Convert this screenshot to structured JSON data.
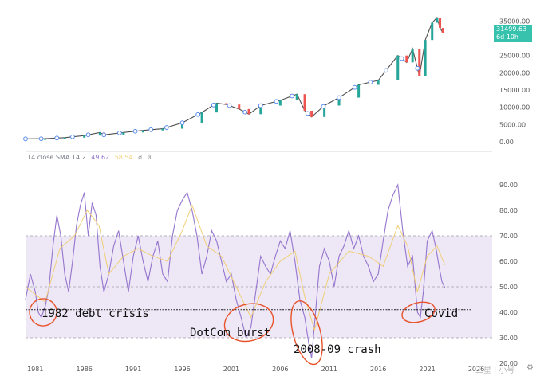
{
  "chart_data": [
    {
      "type": "line",
      "title": "",
      "xlabel": "",
      "ylabel": "",
      "ylim": [
        0,
        36000
      ],
      "ytick_labels": [
        "35000.00",
        "30000.00",
        "25000.00",
        "20000.00",
        "15000.00",
        "10000.00",
        "5000.00",
        "0.00"
      ],
      "y_ticks": [
        35000,
        30000,
        25000,
        20000,
        15000,
        10000,
        5000,
        0
      ],
      "last_value_label": "31499.63",
      "last_value_sub": "6d 10h",
      "last_value": 31499.63,
      "x": [
        1980.0,
        1982.0,
        1984.0,
        1986.0,
        1987.6,
        1988.0,
        1990.0,
        1992.0,
        1994.0,
        1996.0,
        1998.0,
        1999.5,
        2000.5,
        2001.8,
        2002.8,
        2004.0,
        2006.0,
        2007.7,
        2008.5,
        2009.2,
        2010.5,
        2012.0,
        2014.0,
        2016.0,
        2018.0,
        2018.9,
        2019.5,
        2020.2,
        2020.8,
        2021.5,
        2022.0,
        2022.3,
        2022.6
      ],
      "values": [
        850,
        900,
        1200,
        1800,
        2700,
        2000,
        2700,
        3300,
        3800,
        5500,
        8500,
        11200,
        10800,
        9500,
        8000,
        10500,
        12000,
        13800,
        9000,
        7200,
        10500,
        12800,
        16500,
        17800,
        25000,
        23000,
        27000,
        19000,
        29500,
        34500,
        36000,
        33000,
        31500
      ],
      "x_range": [
        1980,
        2026
      ]
    },
    {
      "type": "line",
      "title": "",
      "legend_label": "14 close SMA 14 2",
      "legend_values": [
        "49.62",
        "58.54"
      ],
      "legend_icons": [
        "ø",
        "ø"
      ],
      "ylim": [
        20,
        95
      ],
      "ytick_labels": [
        "90.00",
        "80.00",
        "70.00",
        "60.00",
        "50.00",
        "40.00",
        "30.00",
        "20.00"
      ],
      "y_ticks": [
        90,
        80,
        70,
        60,
        50,
        40,
        30,
        20
      ],
      "bands": [
        70,
        50,
        30
      ],
      "threshold_line": 41,
      "x_tick_labels": [
        "1981",
        "1986",
        "1991",
        "1996",
        "2001",
        "2006",
        "2011",
        "2016",
        "2021",
        "2026"
      ],
      "x_ticks": [
        1981,
        1986,
        1991,
        1996,
        2001,
        2006,
        2011,
        2016,
        2021,
        2026
      ],
      "x_range": [
        1980,
        2026
      ],
      "series": [
        {
          "x": [
            1980.0,
            1980.5,
            1981.0,
            1981.3,
            1981.6,
            1982.0,
            1982.4,
            1982.8,
            1983.2,
            1983.6,
            1984.0,
            1984.4,
            1984.8,
            1985.2,
            1985.6,
            1986.0,
            1986.4,
            1986.8,
            1987.2,
            1987.6,
            1988.0,
            1988.5,
            1989.0,
            1989.5,
            1990.0,
            1990.5,
            1991.0,
            1991.5,
            1992.0,
            1992.5,
            1993.0,
            1993.5,
            1994.0,
            1994.5,
            1995.0,
            1995.5,
            1996.0,
            1996.5,
            1997.0,
            1997.5,
            1998.0,
            1998.5,
            1999.0,
            1999.5,
            2000.0,
            2000.5,
            2001.0,
            2001.5,
            2002.0,
            2002.5,
            2003.0,
            2003.5,
            2004.0,
            2004.5,
            2005.0,
            2005.5,
            2006.0,
            2006.5,
            2007.0,
            2007.5,
            2008.0,
            2008.5,
            2008.9,
            2009.2,
            2009.6,
            2010.0,
            2010.5,
            2011.0,
            2011.5,
            2012.0,
            2012.5,
            2013.0,
            2013.5,
            2014.0,
            2014.5,
            2015.0,
            2015.5,
            2016.0,
            2016.5,
            2017.0,
            2017.5,
            2018.0,
            2018.5,
            2019.0,
            2019.5,
            2020.0,
            2020.3,
            2020.6,
            2021.0,
            2021.5,
            2021.9,
            2022.2,
            2022.5,
            2022.8
          ],
          "values": [
            45,
            55,
            48,
            40,
            38,
            42,
            50,
            66,
            78,
            70,
            55,
            48,
            60,
            74,
            82,
            87,
            70,
            83,
            78,
            58,
            48,
            55,
            66,
            72,
            60,
            48,
            62,
            70,
            60,
            52,
            62,
            68,
            55,
            52,
            70,
            80,
            84,
            87,
            80,
            70,
            55,
            62,
            72,
            68,
            60,
            52,
            55,
            45,
            38,
            30,
            34,
            48,
            62,
            58,
            55,
            62,
            68,
            65,
            72,
            60,
            45,
            38,
            28,
            22,
            40,
            58,
            65,
            60,
            50,
            62,
            66,
            72,
            65,
            70,
            62,
            58,
            52,
            55,
            68,
            80,
            86,
            90,
            72,
            58,
            62,
            40,
            38,
            48,
            68,
            72,
            65,
            58,
            52,
            49.62
          ]
        },
        {
          "x": [
            1980.0,
            1982.0,
            1983.5,
            1985.0,
            1986.3,
            1987.5,
            1988.5,
            1990.0,
            1991.5,
            1993.0,
            1994.5,
            1996.0,
            1997.0,
            1998.5,
            2000.0,
            2001.5,
            2003.0,
            2004.5,
            2006.0,
            2007.5,
            2008.5,
            2009.5,
            2011.0,
            2013.0,
            2015.0,
            2016.5,
            2018.0,
            2019.0,
            2020.0,
            2021.0,
            2022.0,
            2022.8
          ],
          "values": [
            50,
            44,
            65,
            70,
            80,
            74,
            55,
            62,
            65,
            62,
            60,
            72,
            82,
            66,
            62,
            50,
            38,
            52,
            60,
            64,
            46,
            33,
            55,
            64,
            62,
            58,
            74,
            66,
            48,
            62,
            66,
            58.54
          ]
        }
      ],
      "annotations": [
        {
          "label": "1982 debt crisis",
          "x": 1981.8,
          "y": 40
        },
        {
          "label": "DotCom burst",
          "x": 2002.8,
          "y": 36
        },
        {
          "label": "2008-09 crash",
          "x": 2008.7,
          "y": 32
        },
        {
          "label": "Covid",
          "x": 2020.1,
          "y": 40
        }
      ]
    }
  ],
  "colors": {
    "candles_up": "#26a69a",
    "candles_down": "#ef5350",
    "rsi_line": "#9575cd",
    "sma_line": "#f0cf77",
    "band_fill": "#ede7f6",
    "annotation_ring": "#e8522a",
    "markers": "#5b8def",
    "last_price": "#37c2ad"
  },
  "watermark": "三星 I 小号"
}
